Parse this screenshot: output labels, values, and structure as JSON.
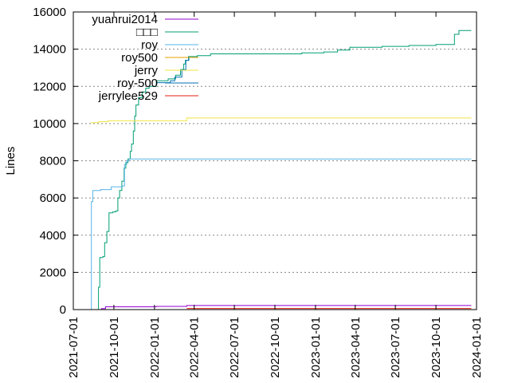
{
  "chart_data": {
    "type": "line",
    "title": "",
    "xlabel": "",
    "ylabel": "Lines",
    "xlim": [
      "2021-07-01",
      "2024-01-01"
    ],
    "ylim": [
      0,
      16000
    ],
    "x_ticks": [
      "2021-07-01",
      "2021-10-01",
      "2022-01-01",
      "2022-04-01",
      "2022-07-01",
      "2022-10-01",
      "2023-01-01",
      "2023-04-01",
      "2023-07-01",
      "2023-10-01",
      "2024-01-01"
    ],
    "y_ticks": [
      0,
      2000,
      4000,
      6000,
      8000,
      10000,
      12000,
      14000,
      16000
    ],
    "grid": "horizontal dotted",
    "legend_position": "top-left",
    "series": [
      {
        "name": "yuanrui2014",
        "color": "#9400d3",
        "step": true,
        "points": [
          [
            "2021-08-20",
            0
          ],
          [
            "2021-09-03",
            50
          ],
          [
            "2021-09-12",
            150
          ],
          [
            "2021-12-15",
            150
          ],
          [
            "2022-01-05",
            170
          ],
          [
            "2022-03-14",
            170
          ],
          [
            "2022-03-15",
            220
          ],
          [
            "2023-12-20",
            220
          ]
        ]
      },
      {
        "name": "□□□",
        "color": "#009e73",
        "step": true,
        "points": [
          [
            "2021-08-24",
            0
          ],
          [
            "2021-08-27",
            1200
          ],
          [
            "2021-08-30",
            2800
          ],
          [
            "2021-09-06",
            2850
          ],
          [
            "2021-09-10",
            3600
          ],
          [
            "2021-09-15",
            4200
          ],
          [
            "2021-09-20",
            5200
          ],
          [
            "2021-09-28",
            5250
          ],
          [
            "2021-10-05",
            5300
          ],
          [
            "2021-10-10",
            6000
          ],
          [
            "2021-10-14",
            6400
          ],
          [
            "2021-10-19",
            6900
          ],
          [
            "2021-10-24",
            7600
          ],
          [
            "2021-10-28",
            7900
          ],
          [
            "2021-11-02",
            8100
          ],
          [
            "2021-11-07",
            8500
          ],
          [
            "2021-11-10",
            8900
          ],
          [
            "2021-11-14",
            9600
          ],
          [
            "2021-11-17",
            10400
          ],
          [
            "2021-11-20",
            11000
          ],
          [
            "2021-11-26",
            11400
          ],
          [
            "2021-12-04",
            11700
          ],
          [
            "2021-12-12",
            11900
          ],
          [
            "2021-12-20",
            12000
          ],
          [
            "2022-01-05",
            12300
          ],
          [
            "2022-02-01",
            12400
          ],
          [
            "2022-02-18",
            12600
          ],
          [
            "2022-03-01",
            12900
          ],
          [
            "2022-03-08",
            13200
          ],
          [
            "2022-03-12",
            13400
          ],
          [
            "2022-03-19",
            13600
          ],
          [
            "2022-04-08",
            13650
          ],
          [
            "2022-05-08",
            13750
          ],
          [
            "2022-12-01",
            13800
          ],
          [
            "2023-01-20",
            13850
          ],
          [
            "2023-02-20",
            13950
          ],
          [
            "2023-03-20",
            14100
          ],
          [
            "2023-06-01",
            14150
          ],
          [
            "2023-08-01",
            14200
          ],
          [
            "2023-10-01",
            14250
          ],
          [
            "2023-11-12",
            14800
          ],
          [
            "2023-11-22",
            15000
          ],
          [
            "2023-12-20",
            15000
          ]
        ]
      },
      {
        "name": "roy",
        "color": "#56b4e9",
        "step": true,
        "points": [
          [
            "2021-08-09",
            0
          ],
          [
            "2021-08-11",
            5800
          ],
          [
            "2021-08-14",
            6400
          ],
          [
            "2021-09-01",
            6450
          ],
          [
            "2021-09-25",
            6600
          ],
          [
            "2021-10-20",
            6650
          ],
          [
            "2021-10-25",
            7800
          ],
          [
            "2021-10-30",
            8000
          ],
          [
            "2021-11-04",
            8100
          ],
          [
            "2023-12-20",
            8100
          ]
        ]
      },
      {
        "name": "roy500",
        "color": "#e69f00",
        "step": true,
        "points": [
          [
            "2022-03-15",
            0
          ],
          [
            "2023-12-20",
            0
          ]
        ]
      },
      {
        "name": "jerry",
        "color": "#f0e442",
        "step": true,
        "points": [
          [
            "2021-08-09",
            10050
          ],
          [
            "2021-08-28",
            10100
          ],
          [
            "2021-09-18",
            10150
          ],
          [
            "2022-03-14",
            10150
          ],
          [
            "2022-03-15",
            10300
          ],
          [
            "2023-12-20",
            10300
          ]
        ]
      },
      {
        "name": "roy-500",
        "color": "#0072b2",
        "step": true,
        "points": [
          [
            "2022-01-05",
            12200
          ],
          [
            "2022-02-06",
            12300
          ],
          [
            "2022-02-16",
            12500
          ],
          [
            "2022-03-04",
            12900
          ],
          [
            "2022-03-13",
            13400
          ],
          [
            "2022-03-20",
            13600
          ]
        ]
      },
      {
        "name": "jerrylee529",
        "color": "#e51e10",
        "step": true,
        "points": [
          [
            "2022-03-15",
            60
          ],
          [
            "2023-12-20",
            60
          ]
        ]
      }
    ]
  }
}
